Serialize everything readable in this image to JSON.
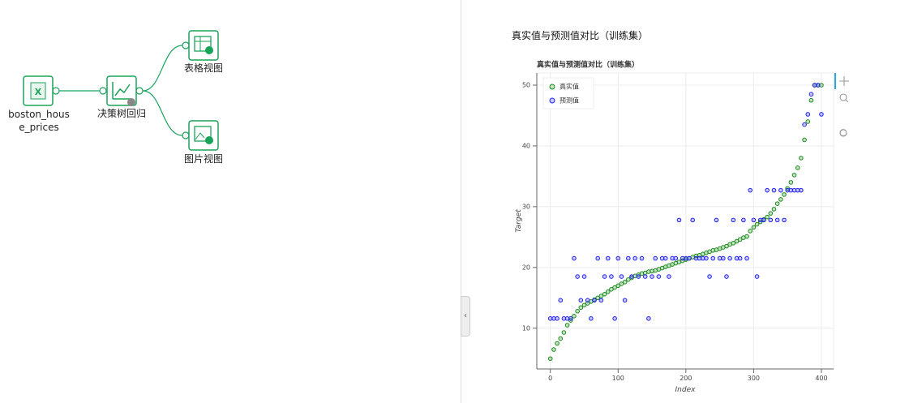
{
  "workflow": {
    "nodes": [
      {
        "label": "boston_house_prices"
      },
      {
        "label": "决策树回归"
      },
      {
        "label": "表格视图"
      },
      {
        "label": "图片视图"
      }
    ]
  },
  "panel": {
    "title": "真实值与预测值对比（训练集）"
  },
  "chart_data": {
    "type": "scatter",
    "title": "真实值与预测值对比（训练集）",
    "x_label": "Index",
    "y_label": "Target",
    "x": [
      0,
      5,
      10,
      15,
      20,
      25,
      30,
      35,
      40,
      45,
      50,
      55,
      60,
      65,
      70,
      75,
      80,
      85,
      90,
      95,
      100,
      105,
      110,
      115,
      120,
      125,
      130,
      135,
      140,
      145,
      150,
      155,
      160,
      165,
      170,
      175,
      180,
      185,
      190,
      195,
      200,
      205,
      210,
      215,
      220,
      225,
      230,
      235,
      240,
      245,
      250,
      255,
      260,
      265,
      270,
      275,
      280,
      285,
      290,
      295,
      300,
      305,
      310,
      315,
      320,
      325,
      330,
      335,
      340,
      345,
      350,
      355,
      360,
      365,
      370,
      375,
      380,
      385,
      390,
      395,
      400
    ],
    "series": [
      {
        "name": "真实值",
        "color": "#1a8a1a",
        "values": [
          5,
          6.5,
          7.5,
          8.3,
          9.3,
          10.5,
          11.3,
          12,
          12.8,
          13.4,
          13.8,
          14.1,
          14.4,
          14.7,
          15,
          15.3,
          15.6,
          16,
          16.4,
          16.7,
          17,
          17.3,
          17.6,
          18,
          18.3,
          18.6,
          18.8,
          19,
          19.1,
          19.3,
          19.4,
          19.5,
          19.7,
          19.9,
          20.1,
          20.3,
          20.5,
          20.7,
          20.9,
          21.1,
          21.3,
          21.5,
          21.7,
          21.9,
          22,
          22.2,
          22.4,
          22.6,
          22.8,
          22.9,
          23.1,
          23.3,
          23.5,
          23.8,
          24,
          24.3,
          24.6,
          24.9,
          25.1,
          26,
          26.6,
          27.1,
          27.5,
          27.9,
          28.3,
          28.9,
          29.6,
          30.5,
          31.2,
          32,
          33,
          34,
          35.2,
          36.4,
          38,
          41,
          44,
          47.5,
          50,
          50,
          50
        ]
      },
      {
        "name": "预测值",
        "color": "#2222ee",
        "values": [
          11.6,
          11.6,
          11.6,
          14.6,
          11.6,
          11.6,
          11.6,
          21.5,
          18.5,
          14.6,
          18.5,
          14.6,
          11.6,
          14.6,
          21.5,
          14.6,
          18.5,
          21.5,
          18.5,
          11.6,
          21.5,
          18.5,
          14.6,
          21.5,
          18.5,
          21.5,
          18.5,
          21.5,
          18.5,
          11.6,
          18.5,
          21.5,
          18.5,
          21.5,
          21.5,
          18.5,
          21.5,
          21.5,
          27.8,
          21.5,
          21.5,
          21.5,
          27.8,
          21.5,
          21.5,
          21.5,
          21.5,
          18.5,
          21.5,
          27.8,
          21.5,
          21.5,
          18.5,
          21.5,
          27.8,
          21.5,
          21.5,
          27.8,
          21.5,
          32.7,
          27.8,
          18.5,
          27.8,
          27.8,
          32.7,
          27.8,
          32.7,
          27.8,
          32.7,
          27.8,
          32.7,
          32.7,
          32.7,
          32.7,
          32.7,
          43.5,
          45.2,
          48.5,
          50,
          50,
          45.2
        ]
      }
    ],
    "xlim": [
      -20,
      418
    ],
    "ylim": [
      3.3,
      52
    ],
    "xticks": [
      0,
      100,
      200,
      300,
      400
    ],
    "yticks": [
      10,
      20,
      30,
      40,
      50
    ],
    "grid": true,
    "legend": "top-left"
  }
}
